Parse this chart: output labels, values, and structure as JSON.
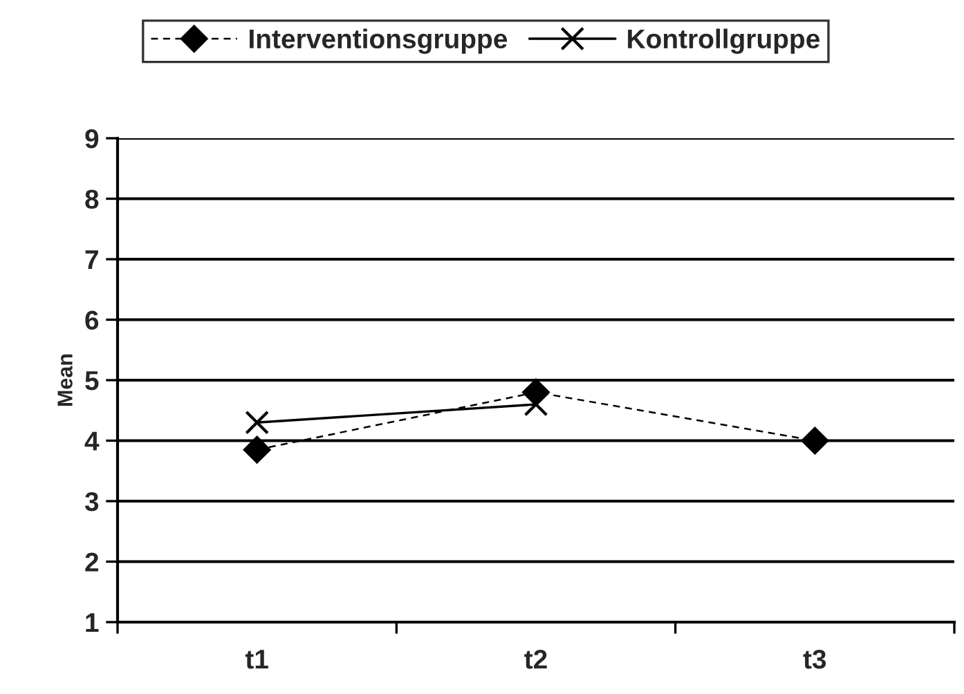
{
  "chart_data": {
    "type": "line",
    "ylabel": "Mean",
    "categories": [
      "t1",
      "t2",
      "t3"
    ],
    "series": [
      {
        "name": "Interventionsgruppe",
        "color": "#000000",
        "values": [
          3.85,
          4.8,
          4.0
        ],
        "marker": "diamond",
        "line_style": "dashed"
      },
      {
        "name": "Kontrollgruppe",
        "color": "#000000",
        "values": [
          4.3,
          4.6,
          null
        ],
        "marker": "cross",
        "line_style": "solid"
      }
    ],
    "ylim": [
      1,
      9
    ],
    "yticks": [
      1,
      2,
      3,
      4,
      5,
      6,
      7,
      8,
      9
    ],
    "grid": "y",
    "legend": "top"
  }
}
